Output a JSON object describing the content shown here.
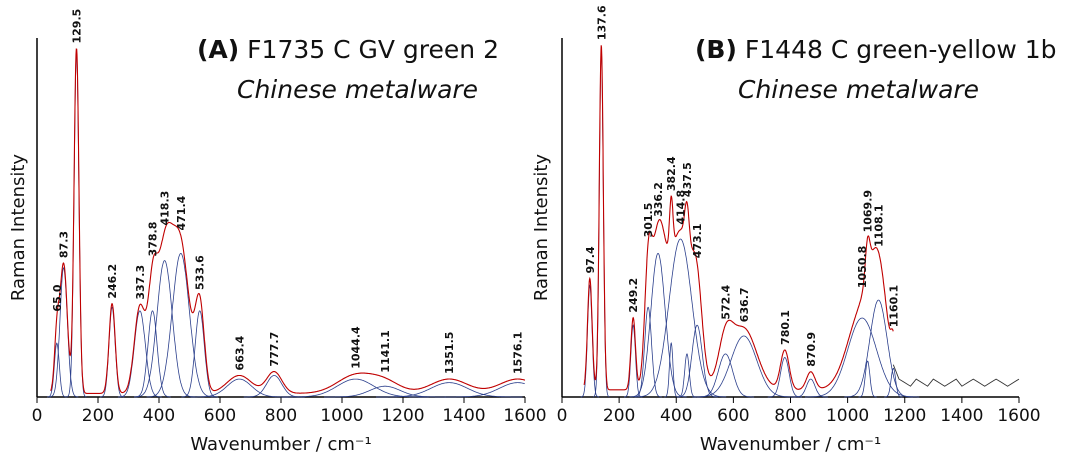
{
  "chart_data": [
    {
      "type": "spectrum",
      "panel": "(A)",
      "title": "F1735 C GV green 2",
      "subtitle": "Chinese metalware",
      "xlabel": "Wavenumber / cm⁻¹",
      "ylabel": "Raman Intensity",
      "xlim": [
        0,
        1600
      ],
      "xticks": [
        0,
        200,
        400,
        600,
        800,
        1000,
        1200,
        1400,
        1600
      ],
      "ylim": [
        0,
        100
      ],
      "peak_positions": [
        65.0,
        87.3,
        129.5,
        246.2,
        337.3,
        378.8,
        418.3,
        471.4,
        533.6,
        663.4,
        777.7,
        1044.4,
        1141.1,
        1351.5,
        1576.1
      ],
      "peak_labels": [
        "65.0",
        "87.3",
        "129.5",
        "246.2",
        "337.3",
        "378.8",
        "418.3",
        "471.4",
        "533.6",
        "663.4",
        "777.7",
        "1044.4",
        "1141.1",
        "1351.5",
        "1576.1"
      ],
      "components": {
        "color": "#2b3f8c",
        "center": [
          65.0,
          87.3,
          129.5,
          246.2,
          337.3,
          378.8,
          418.3,
          471.4,
          533.6,
          663.4,
          777.7,
          1044.4,
          1141.1,
          1351.5,
          1576.1
        ],
        "height": [
          15,
          36,
          96,
          25,
          24,
          24,
          38,
          40,
          24,
          5,
          6,
          5,
          3,
          4,
          4
        ],
        "width": [
          8,
          12,
          8,
          10,
          18,
          15,
          25,
          28,
          15,
          40,
          25,
          60,
          50,
          60,
          60
        ]
      },
      "fit": {
        "color": "#c00000",
        "baseline": 1
      }
    },
    {
      "type": "spectrum",
      "panel": "(B)",
      "title": "F1448 C green-yellow 1b",
      "subtitle": "Chinese metalware",
      "xlabel": "Wavenumber / cm⁻¹",
      "ylabel": "Raman Intensity",
      "xlim": [
        0,
        1600
      ],
      "xticks": [
        0,
        200,
        400,
        600,
        800,
        1000,
        1200,
        1400,
        1600
      ],
      "ylim": [
        0,
        100
      ],
      "peak_positions": [
        97.4,
        137.6,
        249.2,
        301.5,
        336.2,
        382.4,
        414.8,
        437.5,
        473.1,
        572.4,
        636.7,
        780.1,
        870.9,
        1050.8,
        1069.9,
        1108.1,
        1160.1
      ],
      "peak_labels": [
        "97.4",
        "137.6",
        "249.2",
        "301.5",
        "336.2",
        "382.4",
        "414.8",
        "437.5",
        "473.1",
        "572.4",
        "636.7",
        "780.1",
        "870.9",
        "1050.8",
        "1069.9",
        "1108.1",
        "1160.1"
      ],
      "components": {
        "color": "#2b3f8c",
        "center": [
          97.4,
          137.6,
          249.2,
          301.5,
          336.2,
          382.4,
          414.8,
          437.5,
          473.1,
          572.4,
          636.7,
          780.1,
          870.9,
          1050.8,
          1069.9,
          1108.1,
          1160.1
        ],
        "height": [
          31,
          96,
          20,
          25,
          40,
          15,
          44,
          12,
          20,
          12,
          17,
          11,
          5,
          22,
          10,
          27,
          8
        ],
        "width": [
          8,
          7,
          8,
          12,
          25,
          6,
          40,
          8,
          18,
          25,
          45,
          15,
          15,
          50,
          8,
          30,
          8
        ]
      },
      "fit": {
        "color": "#c00000",
        "baseline": 2
      },
      "measured": {
        "color": "#333333",
        "x": [
          1160,
          1180,
          1200,
          1220,
          1240,
          1260,
          1280,
          1300,
          1320,
          1340,
          1360,
          1380,
          1400,
          1420,
          1440,
          1460,
          1480,
          1500,
          1520,
          1540,
          1560,
          1580,
          1600
        ],
        "y": [
          9,
          5,
          4,
          3,
          5,
          4,
          3,
          5,
          4,
          3,
          4,
          5,
          3,
          4,
          5,
          4,
          3,
          4,
          5,
          4,
          3,
          4,
          5
        ]
      }
    }
  ]
}
